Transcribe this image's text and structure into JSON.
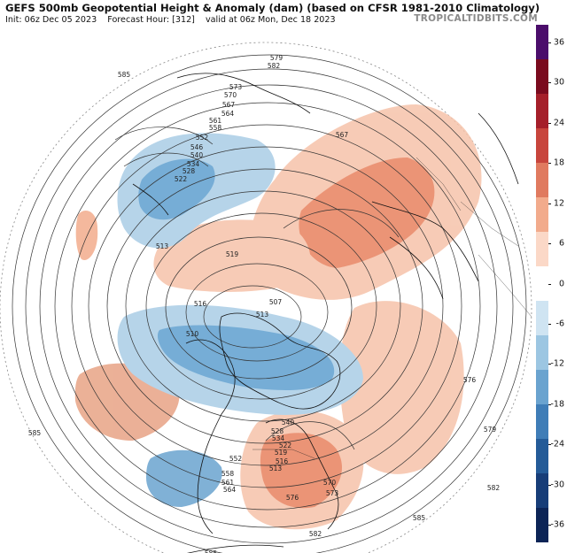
{
  "header": {
    "title": "GEFS 500mb Geopotential Height & Anomaly (dam) (based on CFSR 1981-2010 Climatology)",
    "init": "Init: 06z Dec 05 2023",
    "forecast_hour": "Forecast Hour: [312]",
    "valid": "valid at 06z Mon, Dec 18 2023",
    "brand": "TROPICALTIDBITS.COM"
  },
  "colorbar": {
    "ticks": [
      "36",
      "30",
      "24",
      "18",
      "12",
      "6",
      "0",
      "-6",
      "-12",
      "-18",
      "-24",
      "-30",
      "-36"
    ],
    "colors": [
      "#4b0d6b",
      "#7a0a1e",
      "#a51f2a",
      "#c8453c",
      "#e07a5f",
      "#f2ab8c",
      "#fbd8c7",
      "#ffffff",
      "#cfe4f2",
      "#9cc6e2",
      "#6aa3cf",
      "#3f7db7",
      "#245b98",
      "#173d78",
      "#0c2456"
    ]
  },
  "contour_labels": [
    "579",
    "582",
    "573",
    "570",
    "567",
    "564",
    "561",
    "558",
    "585",
    "552",
    "546",
    "540",
    "534",
    "528",
    "522",
    "513",
    "519",
    "516",
    "510",
    "507",
    "513",
    "585",
    "567",
    "576",
    "579",
    "582",
    "576",
    "585",
    "570",
    "573",
    "564",
    "561",
    "558",
    "552",
    "540",
    "528",
    "534",
    "522",
    "519",
    "516",
    "513",
    "582",
    "585"
  ],
  "anomaly_colors": {
    "positive": "#e8825f",
    "positive_light": "#f6c3aa",
    "negative": "#5f9fcf",
    "negative_light": "#aacde6"
  }
}
